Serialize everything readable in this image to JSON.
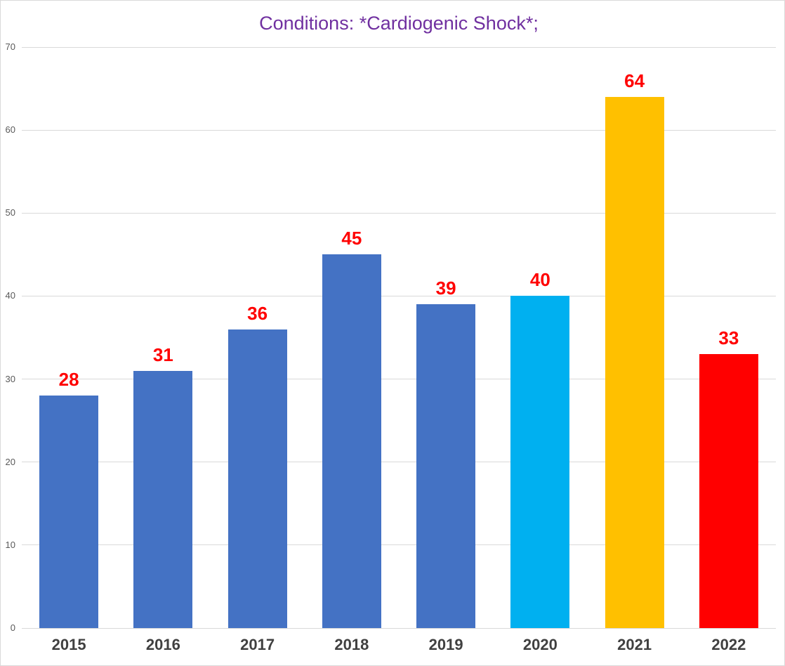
{
  "chart_data": {
    "type": "bar",
    "title": "Conditions: *Cardiogenic Shock*;",
    "categories": [
      "2015",
      "2016",
      "2017",
      "2018",
      "2019",
      "2020",
      "2021",
      "2022"
    ],
    "values": [
      28,
      31,
      36,
      45,
      39,
      40,
      64,
      33
    ],
    "bar_colors": [
      "#4472C4",
      "#4472C4",
      "#4472C4",
      "#4472C4",
      "#4472C4",
      "#00B0F0",
      "#FFC000",
      "#FF0000"
    ],
    "data_label_color": "#FF0000",
    "xlabel": "",
    "ylabel": "",
    "ylim": [
      0,
      70
    ],
    "y_ticks": [
      0,
      10,
      20,
      30,
      40,
      50,
      60,
      70
    ],
    "grid": true,
    "legend": "none",
    "colors": {
      "title": "#7030A0",
      "axis_tick_label": "#595959",
      "category_label": "#404040",
      "gridline": "#D9D9D9",
      "border": "#D9D9D9",
      "background": "#FFFFFF"
    }
  }
}
